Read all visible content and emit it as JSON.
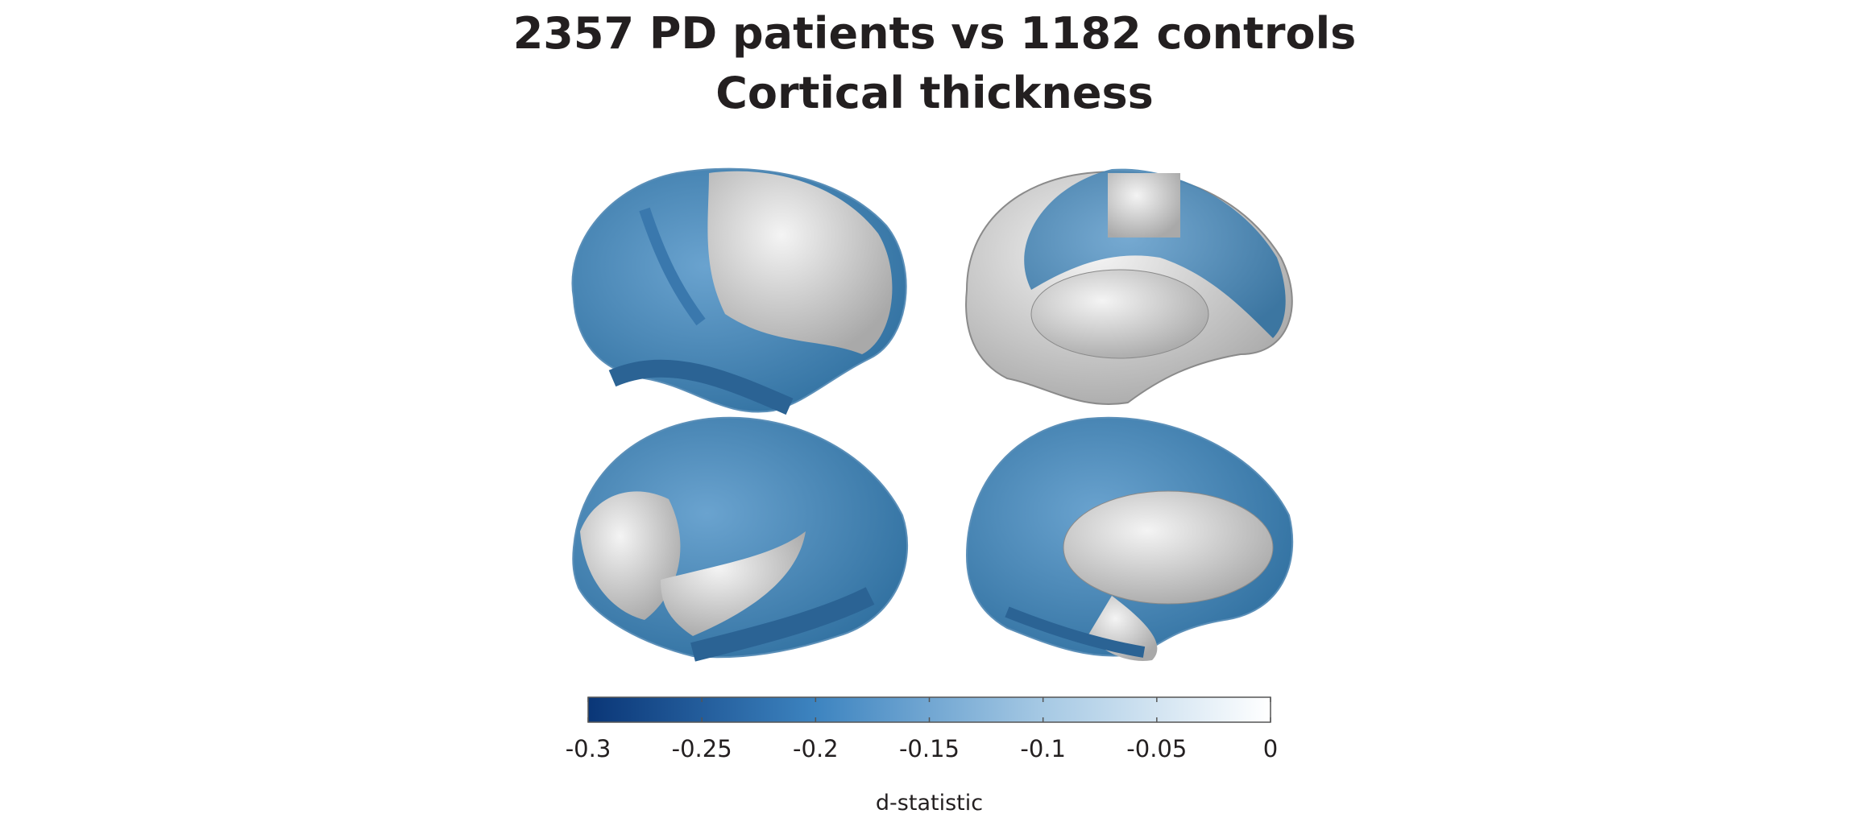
{
  "chart_data": {
    "type": "colorbar",
    "title": [
      "2357 PD patients vs 1182 controls",
      "Cortical thickness"
    ],
    "xlabel": "d-statistic",
    "xlim": [
      -0.3,
      0
    ],
    "xticks": [
      -0.3,
      -0.25,
      -0.2,
      -0.15,
      -0.1,
      -0.05,
      0
    ],
    "colors": [
      "#0a3677",
      "#3d84c0",
      "#a6c9e4",
      "#ffffff"
    ]
  }
}
